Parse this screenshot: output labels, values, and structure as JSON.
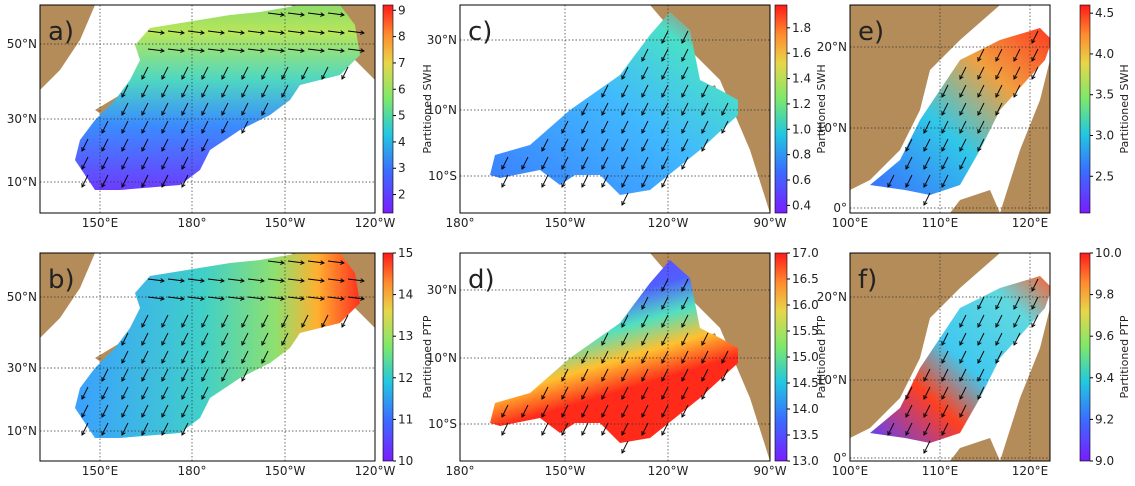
{
  "panels": [
    {
      "label": "a)",
      "lat_labels": [
        "50°N",
        "30°N",
        "10°N"
      ],
      "lon_labels": [
        "150°E",
        "180°",
        "150°W",
        "120°W"
      ],
      "colorbar": {
        "label": "Partitioned SWH",
        "range": [
          1.3,
          9.2
        ],
        "ticks": [
          2,
          3,
          4,
          5,
          6,
          7,
          8,
          9
        ]
      }
    },
    {
      "label": "c)",
      "lat_labels": [
        "30°N",
        "10°N",
        "10°S"
      ],
      "lon_labels": [
        "180°",
        "150°W",
        "120°W",
        "90°W"
      ],
      "colorbar": {
        "label": "Partitioned SWH",
        "range": [
          0.34,
          1.98
        ],
        "ticks": [
          0.4,
          0.6,
          0.8,
          {
            "value": 1,
            "label": "1.0"
          },
          1.2,
          1.4,
          1.6,
          1.8
        ]
      }
    },
    {
      "label": "e)",
      "lat_labels": [
        "20°N",
        "10°N",
        "0°"
      ],
      "lon_labels": [
        "100°E",
        "110°E",
        "120°E"
      ],
      "colorbar": {
        "label": "Partitioned SWH",
        "range": [
          2.05,
          4.6
        ],
        "ticks": [
          2.5,
          {
            "value": 3,
            "label": "3.0"
          },
          3.5,
          {
            "value": 4,
            "label": "4.0"
          },
          4.5
        ]
      }
    },
    {
      "label": "b)",
      "lat_labels": [
        "50°N",
        "30°N",
        "10°N"
      ],
      "lon_labels": [
        "150°E",
        "180°",
        "150°W",
        "120°W"
      ],
      "colorbar": {
        "label": "Partitioned PTP",
        "range": [
          10,
          15
        ],
        "ticks": [
          10,
          11,
          12,
          13,
          14,
          15
        ]
      }
    },
    {
      "label": "d)",
      "lat_labels": [
        "30°N",
        "10°N",
        "10°S"
      ],
      "lon_labels": [
        "180°",
        "150°W",
        "120°W",
        "90°W"
      ],
      "colorbar": {
        "label": "Partitioned PTP",
        "range": [
          13,
          17
        ],
        "ticks": [
          {
            "value": 13,
            "label": "13.0"
          },
          13.5,
          {
            "value": 14,
            "label": "14.0"
          },
          14.5,
          {
            "value": 15,
            "label": "15.0"
          },
          15.5,
          {
            "value": 16,
            "label": "16.0"
          },
          16.5,
          {
            "value": 17,
            "label": "17.0"
          }
        ]
      }
    },
    {
      "label": "f)",
      "lat_labels": [
        "20°N",
        "10°N",
        "0°"
      ],
      "lon_labels": [
        "100°E",
        "110°E",
        "120°E"
      ],
      "colorbar": {
        "label": "Partitioned PTP",
        "range": [
          9,
          10
        ],
        "ticks": [
          {
            "value": 9,
            "label": "9.0"
          },
          9.2,
          9.4,
          9.6,
          9.8,
          {
            "value": 10,
            "label": "10.0"
          }
        ]
      }
    }
  ]
}
